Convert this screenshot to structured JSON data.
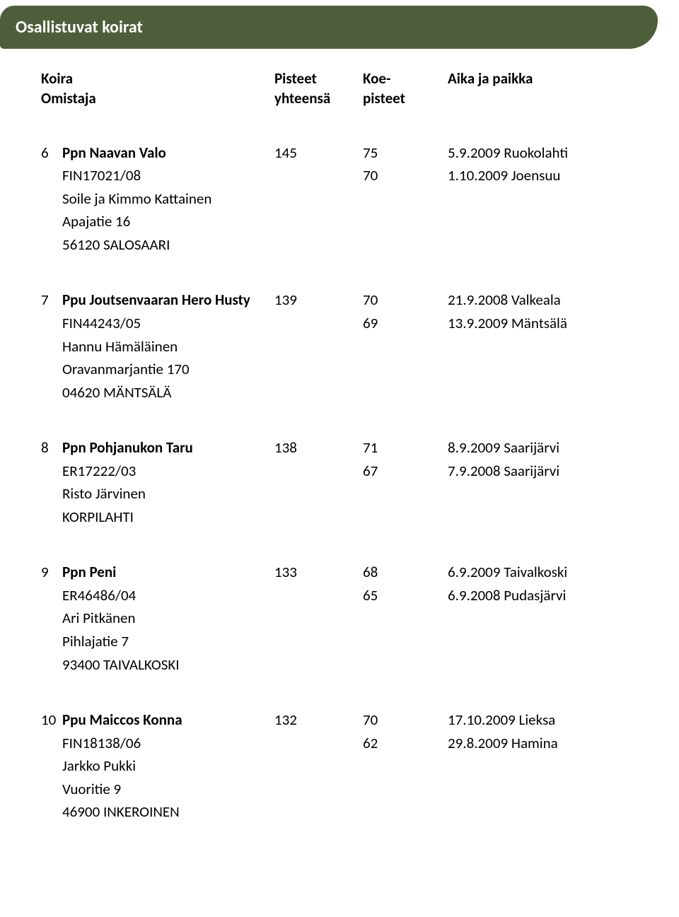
{
  "header": {
    "title": "Osallistuvat koirat"
  },
  "columns": {
    "left1": "Koira",
    "left2": "Omistaja",
    "mid1a": "Pisteet",
    "mid1b": "yhteensä",
    "mid2a": "Koe-",
    "mid2b": "pisteet",
    "right": "Aika ja paikka"
  },
  "entries": [
    {
      "num": "6",
      "dog": "Ppn Naavan Valo",
      "reg": "FIN17021/08",
      "owner": "Soile ja Kimmo Kattainen",
      "addr1": "Apajatie 16",
      "addr2": "56120 SALOSAARI",
      "total": "145",
      "k1": "75",
      "k2": "70",
      "evt1": "5.9.2009 Ruokolahti",
      "evt2": "1.10.2009 Joensuu"
    },
    {
      "num": "7",
      "dog": "Ppu Joutsenvaaran Hero Husty",
      "reg": "FIN44243/05",
      "owner": "Hannu Hämäläinen",
      "addr1": "Oravanmarjantie 170",
      "addr2": "04620 MÄNTSÄLÄ",
      "total": "139",
      "k1": "70",
      "k2": "69",
      "evt1": "21.9.2008 Valkeala",
      "evt2": "13.9.2009 Mäntsälä"
    },
    {
      "num": "8",
      "dog": "Ppn Pohjanukon Taru",
      "reg": "ER17222/03",
      "owner": "Risto Järvinen",
      "addr1": "KORPILAHTI",
      "addr2": "",
      "total": "138",
      "k1": "71",
      "k2": "67",
      "evt1": "8.9.2009 Saarijärvi",
      "evt2": "7.9.2008 Saarijärvi"
    },
    {
      "num": "9",
      "dog": "Ppn Peni",
      "reg": "ER46486/04",
      "owner": "Ari Pitkänen",
      "addr1": "Pihlajatie 7",
      "addr2": "93400 TAIVALKOSKI",
      "total": "133",
      "k1": "68",
      "k2": "65",
      "evt1": "6.9.2009 Taivalkoski",
      "evt2": "6.9.2008 Pudasjärvi"
    },
    {
      "num": "10",
      "dog": "Ppu Maiccos Konna",
      "reg": "FIN18138/06",
      "owner": "Jarkko Pukki",
      "addr1": "Vuoritie 9",
      "addr2": "46900 INKEROINEN",
      "total": "132",
      "k1": "70",
      "k2": "62",
      "evt1": "17.10.2009 Lieksa",
      "evt2": "29.8.2009 Hamina"
    }
  ]
}
